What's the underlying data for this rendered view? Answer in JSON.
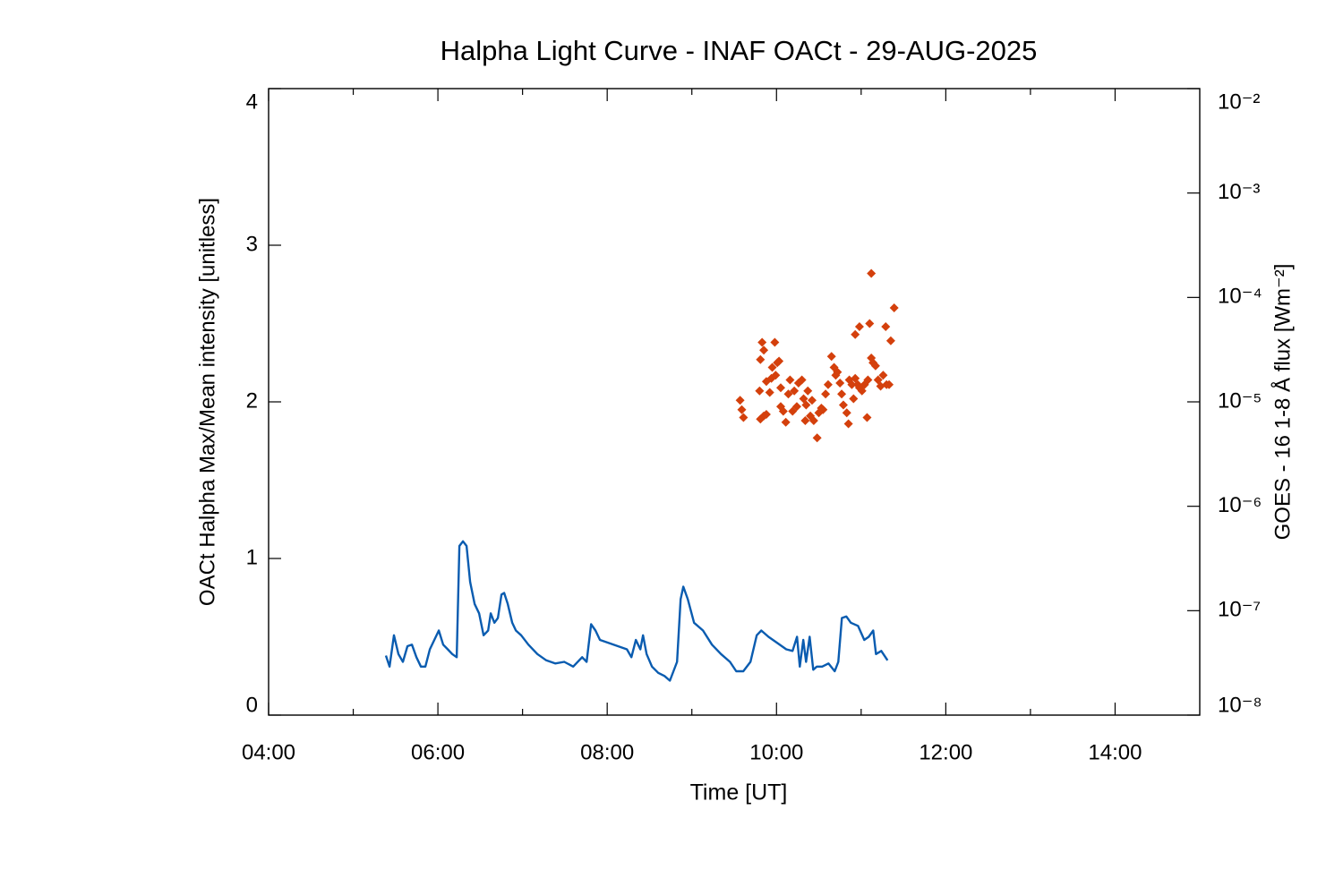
{
  "chart_data": {
    "type": "line",
    "title": "Halpha Light Curve - INAF OACt - 29-AUG-2025",
    "xlabel": "Time [UT]",
    "ylabel": "OACt Halpha Max/Mean intensity [unitless]",
    "y2label": "GOES - 16 1-8 Å flux [Wm⁻²]",
    "xlim": [
      4,
      15
    ],
    "xticks": [
      {
        "value": 4,
        "label": "04:00"
      },
      {
        "value": 6,
        "label": "06:00"
      },
      {
        "value": 8,
        "label": "08:00"
      },
      {
        "value": 10,
        "label": "10:00"
      },
      {
        "value": 12,
        "label": "12:00"
      },
      {
        "value": 14,
        "label": "14:00"
      }
    ],
    "xminorticks": [
      5,
      7,
      9,
      11,
      13
    ],
    "ylim": [
      0,
      4
    ],
    "yticks": [
      0,
      1,
      2,
      3,
      4
    ],
    "y2lim": [
      1e-08,
      0.01
    ],
    "y2log": true,
    "y2ticks": [
      {
        "value": 1e-08,
        "label": "10⁻⁸"
      },
      {
        "value": 1e-07,
        "label": "10⁻⁷"
      },
      {
        "value": 1e-06,
        "label": "10⁻⁶"
      },
      {
        "value": 1e-05,
        "label": "10⁻⁵"
      },
      {
        "value": 0.0001,
        "label": "10⁻⁴"
      },
      {
        "value": 0.001,
        "label": "10⁻³"
      },
      {
        "value": 0.01,
        "label": "10⁻²"
      }
    ],
    "series": [
      {
        "type": "line",
        "color": "#0a5cb0",
        "x": [
          5.386,
          5.429,
          5.481,
          5.534,
          5.587,
          5.64,
          5.693,
          5.746,
          5.799,
          5.852,
          5.905,
          5.958,
          6.011,
          6.063,
          6.116,
          6.169,
          6.222,
          6.254,
          6.296,
          6.339,
          6.381,
          6.434,
          6.487,
          6.54,
          6.593,
          6.624,
          6.667,
          6.709,
          6.751,
          6.783,
          6.825,
          6.878,
          6.921,
          6.984,
          7.069,
          7.175,
          7.28,
          7.386,
          7.492,
          7.598,
          7.704,
          7.757,
          7.81,
          7.862,
          7.915,
          8.021,
          8.127,
          8.233,
          8.286,
          8.339,
          8.392,
          8.423,
          8.466,
          8.529,
          8.603,
          8.677,
          8.741,
          8.783,
          8.825,
          8.868,
          8.899,
          8.952,
          9.026,
          9.132,
          9.238,
          9.344,
          9.45,
          9.524,
          9.608,
          9.693,
          9.767,
          9.82,
          9.905,
          10.011,
          10.116,
          10.19,
          10.243,
          10.275,
          10.317,
          10.349,
          10.392,
          10.434,
          10.476,
          10.54,
          10.614,
          10.688,
          10.73,
          10.772,
          10.825,
          10.878,
          10.963,
          11.037,
          11.09,
          11.143,
          11.175,
          11.238,
          11.312
        ],
        "values": [
          0.38,
          0.31,
          0.51,
          0.39,
          0.34,
          0.44,
          0.45,
          0.37,
          0.31,
          0.31,
          0.42,
          0.48,
          0.54,
          0.45,
          0.42,
          0.39,
          0.37,
          1.08,
          1.11,
          1.08,
          0.85,
          0.71,
          0.65,
          0.51,
          0.54,
          0.65,
          0.59,
          0.62,
          0.77,
          0.78,
          0.71,
          0.59,
          0.54,
          0.51,
          0.45,
          0.39,
          0.35,
          0.33,
          0.34,
          0.31,
          0.37,
          0.34,
          0.58,
          0.54,
          0.48,
          0.46,
          0.44,
          0.42,
          0.37,
          0.48,
          0.42,
          0.51,
          0.39,
          0.31,
          0.27,
          0.25,
          0.22,
          0.28,
          0.34,
          0.74,
          0.82,
          0.74,
          0.59,
          0.54,
          0.45,
          0.39,
          0.34,
          0.28,
          0.28,
          0.34,
          0.51,
          0.54,
          0.5,
          0.46,
          0.42,
          0.41,
          0.5,
          0.31,
          0.48,
          0.34,
          0.5,
          0.29,
          0.31,
          0.31,
          0.33,
          0.28,
          0.34,
          0.62,
          0.63,
          0.59,
          0.57,
          0.48,
          0.5,
          0.54,
          0.39,
          0.41,
          0.35
        ]
      },
      {
        "type": "scatter",
        "color": "#d4400c",
        "x": [
          9.57,
          9.59,
          9.61,
          9.8,
          9.83,
          9.85,
          9.81,
          9.88,
          9.92,
          9.94,
          9.95,
          9.98,
          9.99,
          10.01,
          10.03,
          10.05,
          9.81,
          9.85,
          9.88,
          10.05,
          10.08,
          10.11,
          10.14,
          10.16,
          10.19,
          10.21,
          10.24,
          10.26,
          10.3,
          10.32,
          10.34,
          10.35,
          10.37,
          10.4,
          10.42,
          10.44,
          10.48,
          10.5,
          10.53,
          10.55,
          10.58,
          10.61,
          10.65,
          10.68,
          10.7,
          10.72,
          10.75,
          10.77,
          10.79,
          10.83,
          10.85,
          10.86,
          10.89,
          10.91,
          10.93,
          10.96,
          10.98,
          11.01,
          11.04,
          11.07,
          11.08,
          11.1,
          11.12,
          11.14,
          11.17,
          11.2,
          11.23,
          11.26,
          11.3,
          11.35,
          11.39,
          10.93,
          10.98,
          11.12,
          11.29,
          11.33
        ],
        "values": [
          2.01,
          1.95,
          1.9,
          2.07,
          2.38,
          2.33,
          2.27,
          2.13,
          2.06,
          2.15,
          2.22,
          2.38,
          2.17,
          2.25,
          2.26,
          2.09,
          1.89,
          1.91,
          1.92,
          1.97,
          1.94,
          1.87,
          2.05,
          2.14,
          1.94,
          2.07,
          1.97,
          2.12,
          2.14,
          2.02,
          1.88,
          1.98,
          2.07,
          1.91,
          2.01,
          1.88,
          1.77,
          1.93,
          1.96,
          1.95,
          2.05,
          2.11,
          2.29,
          2.22,
          2.17,
          2.19,
          2.12,
          2.05,
          1.98,
          1.93,
          1.86,
          2.14,
          2.11,
          2.02,
          2.15,
          2.11,
          2.09,
          2.07,
          2.11,
          1.9,
          2.14,
          2.5,
          2.28,
          2.25,
          2.23,
          2.14,
          2.1,
          2.17,
          2.11,
          2.39,
          2.6,
          2.43,
          2.48,
          2.82,
          2.48,
          2.11
        ]
      }
    ]
  }
}
